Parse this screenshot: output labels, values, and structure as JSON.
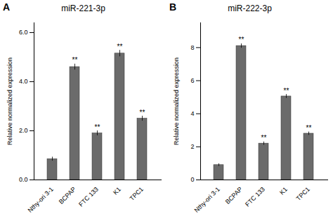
{
  "chart_data": [
    {
      "type": "bar",
      "label": "A",
      "title": "miR-221-3p",
      "categories": [
        "Nthy-ori 3-1",
        "BCPAP",
        "FTC 133",
        "K1",
        "TPC1"
      ],
      "values": [
        0.85,
        4.6,
        1.9,
        5.15,
        2.5
      ],
      "errors": [
        0.08,
        0.12,
        0.1,
        0.13,
        0.1
      ],
      "annotations": [
        {
          "category": "BCPAP",
          "text": "**"
        },
        {
          "category": "FTC 133",
          "text": "**"
        },
        {
          "category": "K1",
          "text": "**"
        },
        {
          "category": "TPC1",
          "text": "**"
        }
      ],
      "color": "#6b6b6b",
      "ylim": [
        0,
        6.4
      ],
      "yticks": [
        0,
        2,
        4,
        6
      ],
      "ylabel": "Relative normalized expression"
    },
    {
      "type": "bar",
      "label": "B",
      "title": "miR-222-3p",
      "categories": [
        "Nthy-ori 3-1",
        "BCPAP",
        "FTC 133",
        "K1",
        "TPC1"
      ],
      "values": [
        0.9,
        8.1,
        2.2,
        5.05,
        2.8
      ],
      "errors": [
        0.08,
        0.13,
        0.1,
        0.12,
        0.1
      ],
      "annotations": [
        {
          "category": "BCPAP",
          "text": "**"
        },
        {
          "category": "FTC 133",
          "text": "**"
        },
        {
          "category": "K1",
          "text": "**"
        },
        {
          "category": "TPC1",
          "text": "**"
        }
      ],
      "color": "#6b6b6b",
      "ylim": [
        0,
        9.5
      ],
      "yticks": [
        0,
        2,
        4,
        6,
        8
      ],
      "ylabel": "Relative normalized expression"
    }
  ]
}
